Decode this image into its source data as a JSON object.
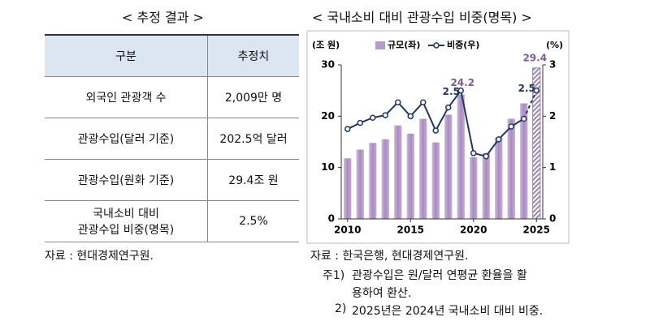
{
  "table_title": "< 추정 결과 >",
  "table": {
    "header": [
      "구분",
      "추정치"
    ],
    "rows": [
      [
        "외국인 관광객 수",
        "2,009만 명"
      ],
      [
        "관광수입(달러 기준)",
        "202.5억 달러"
      ],
      [
        "관광수입(원화 기준)",
        "29.4조 원"
      ],
      [
        "국내소비 대비\n관광수입 비중(명목)",
        "2.5%"
      ]
    ]
  },
  "table_source": "자료 : 현대경제연구원.",
  "chart_data": {
    "type": "bar",
    "title": "< 국내소비 대비 관광수입 비중(명목) >",
    "y_label": "(조 원)",
    "y2_label": "(%)",
    "x": [
      2010,
      2011,
      2012,
      2013,
      2014,
      2015,
      2016,
      2017,
      2018,
      2019,
      2020,
      2021,
      2022,
      2023,
      2024,
      2025
    ],
    "xlim": [
      2009.5,
      2025.5
    ],
    "xticks": [
      2010,
      2015,
      2020,
      2025
    ],
    "ylim": [
      0,
      30
    ],
    "yticks": [
      0,
      10,
      20,
      30
    ],
    "y2lim": [
      0,
      3
    ],
    "y2ticks": [
      0,
      1,
      2,
      3
    ],
    "series": [
      {
        "name": "규모(좌)",
        "type": "bar",
        "color": "#b79bcb",
        "values": [
          11.8,
          13.5,
          14.8,
          15.5,
          18.2,
          16.6,
          19.5,
          14.9,
          20.3,
          24.2,
          12.0,
          12.8,
          15.8,
          19.5,
          22.5,
          29.4
        ]
      },
      {
        "name": "비중(우)",
        "type": "line",
        "axis": "y2",
        "color": "#1f3864",
        "values": [
          1.75,
          1.87,
          1.97,
          2.02,
          2.27,
          2.0,
          2.27,
          1.72,
          2.17,
          2.5,
          1.28,
          1.22,
          1.55,
          1.8,
          1.95,
          2.5
        ]
      }
    ],
    "notes": {
      "source": "자료 : 한국은행, 현대경제연구원.",
      "note1_label": "주1)",
      "note1": "관광수입은 원/달러 연평균 환율을 활\n용하여 환산.",
      "note2_label": "2)",
      "note2": "2025년은 2024년 국내소비 대비 비중."
    }
  }
}
